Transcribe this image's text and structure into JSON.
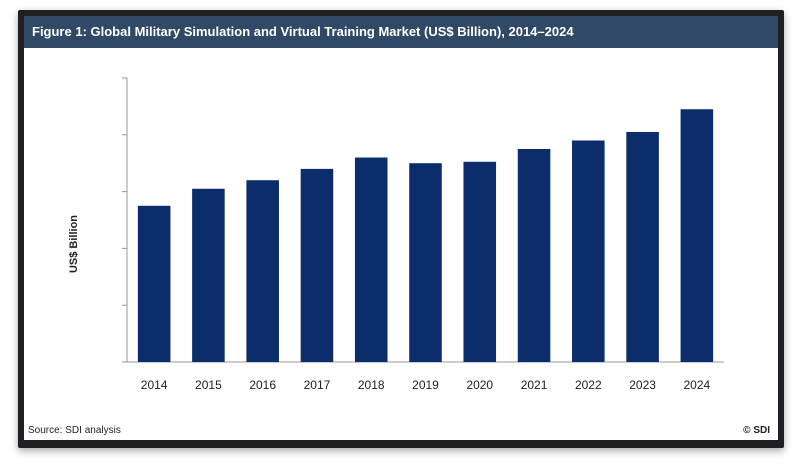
{
  "title": "Figure 1: Global Military Simulation and Virtual Training Market (US$ Billion), 2014–2024",
  "source": "Source: SDI analysis",
  "credit": "© SDI",
  "colors": {
    "bar": "#0b2d6b",
    "header": "#2f4967",
    "frame": "#1f1f24"
  },
  "chart_data": {
    "type": "bar",
    "title": "Figure 1: Global Military Simulation and Virtual Training Market (US$ Billion), 2014–2024",
    "xlabel": "",
    "ylabel": "US$ Billion",
    "categories": [
      "2014",
      "2015",
      "2016",
      "2017",
      "2018",
      "2019",
      "2020",
      "2021",
      "2022",
      "2023",
      "2024"
    ],
    "values": [
      5.5,
      6.1,
      6.4,
      6.8,
      7.2,
      7.0,
      7.05,
      7.5,
      7.8,
      8.1,
      8.9
    ],
    "ylim": [
      0,
      10
    ],
    "yticks": [
      0,
      2,
      4,
      6,
      8,
      10
    ],
    "ytick_labels_shown": false,
    "grid": false,
    "legend": "none"
  }
}
